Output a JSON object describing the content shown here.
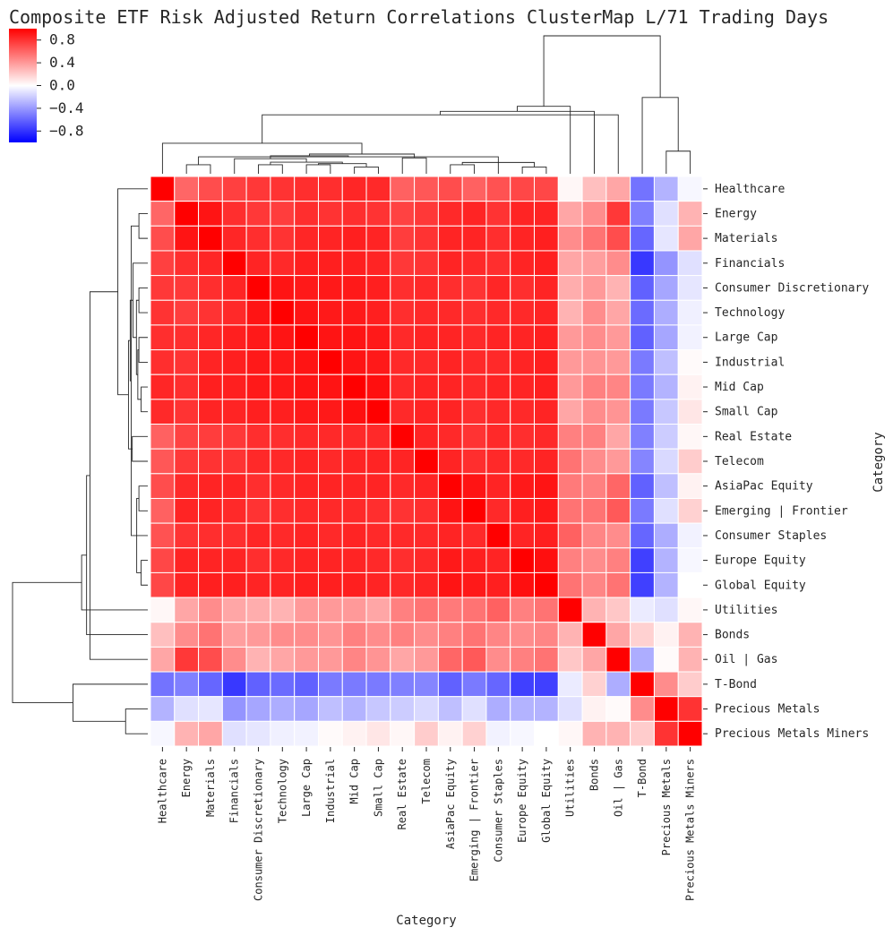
{
  "chart_data": {
    "type": "heatmap",
    "title": "Composite ETF Risk Adjusted Return Correlations ClusterMap L/71 Trading Days",
    "xlabel": "Category",
    "ylabel": "Category",
    "categories": [
      "Healthcare",
      "Energy",
      "Materials",
      "Financials",
      "Consumer Discretionary",
      "Technology",
      "Large Cap",
      "Industrial",
      "Mid Cap",
      "Small Cap",
      "Real Estate",
      "Telecom",
      "AsiaPac Equity",
      "Emerging | Frontier",
      "Consumer Staples",
      "Europe Equity",
      "Global Equity",
      "Utilities",
      "Bonds",
      "Oil | Gas",
      "T-Bond",
      "Precious Metals",
      "Precious Metals Miners"
    ],
    "colorbar": {
      "ticks": [
        "0.8",
        "0.4",
        "0.0",
        "−0.4",
        "−0.8"
      ],
      "tick_values": [
        0.8,
        0.4,
        0.0,
        -0.4,
        -0.8
      ],
      "vmin": -1,
      "vmax": 1,
      "colormap": "bwr"
    },
    "values": [
      [
        1.0,
        0.6,
        0.7,
        0.75,
        0.78,
        0.8,
        0.82,
        0.82,
        0.85,
        0.84,
        0.62,
        0.66,
        0.7,
        0.62,
        0.68,
        0.72,
        0.72,
        0.03,
        0.25,
        0.35,
        -0.55,
        -0.3,
        -0.03
      ],
      [
        0.6,
        1.0,
        0.92,
        0.82,
        0.78,
        0.76,
        0.82,
        0.8,
        0.82,
        0.8,
        0.74,
        0.78,
        0.84,
        0.86,
        0.8,
        0.86,
        0.86,
        0.35,
        0.45,
        0.78,
        -0.5,
        -0.12,
        0.3
      ],
      [
        0.7,
        0.92,
        1.0,
        0.85,
        0.82,
        0.8,
        0.85,
        0.86,
        0.88,
        0.86,
        0.76,
        0.8,
        0.86,
        0.86,
        0.82,
        0.86,
        0.88,
        0.45,
        0.55,
        0.7,
        -0.6,
        -0.1,
        0.35
      ],
      [
        0.75,
        0.82,
        0.85,
        1.0,
        0.86,
        0.84,
        0.88,
        0.88,
        0.88,
        0.86,
        0.78,
        0.8,
        0.86,
        0.84,
        0.82,
        0.86,
        0.88,
        0.35,
        0.38,
        0.45,
        -0.78,
        -0.42,
        -0.12
      ],
      [
        0.78,
        0.78,
        0.82,
        0.86,
        1.0,
        0.92,
        0.9,
        0.9,
        0.9,
        0.88,
        0.82,
        0.84,
        0.82,
        0.8,
        0.85,
        0.82,
        0.86,
        0.32,
        0.4,
        0.3,
        -0.62,
        -0.35,
        -0.1
      ],
      [
        0.8,
        0.76,
        0.8,
        0.84,
        0.92,
        1.0,
        0.92,
        0.9,
        0.9,
        0.88,
        0.82,
        0.84,
        0.84,
        0.82,
        0.84,
        0.84,
        0.86,
        0.3,
        0.45,
        0.35,
        -0.58,
        -0.32,
        -0.06
      ],
      [
        0.82,
        0.82,
        0.85,
        0.88,
        0.9,
        0.92,
        1.0,
        0.92,
        0.92,
        0.9,
        0.84,
        0.86,
        0.86,
        0.84,
        0.86,
        0.86,
        0.88,
        0.4,
        0.45,
        0.4,
        -0.62,
        -0.35,
        -0.05
      ],
      [
        0.82,
        0.8,
        0.86,
        0.88,
        0.9,
        0.9,
        0.92,
        1.0,
        0.92,
        0.9,
        0.84,
        0.84,
        0.86,
        0.84,
        0.84,
        0.86,
        0.88,
        0.4,
        0.42,
        0.4,
        -0.52,
        -0.25,
        0.02
      ],
      [
        0.85,
        0.82,
        0.88,
        0.88,
        0.9,
        0.9,
        0.92,
        0.92,
        1.0,
        0.94,
        0.84,
        0.86,
        0.86,
        0.84,
        0.86,
        0.86,
        0.88,
        0.4,
        0.5,
        0.48,
        -0.52,
        -0.3,
        0.05
      ],
      [
        0.84,
        0.8,
        0.86,
        0.86,
        0.88,
        0.88,
        0.9,
        0.9,
        0.94,
        1.0,
        0.84,
        0.86,
        0.86,
        0.82,
        0.84,
        0.84,
        0.86,
        0.35,
        0.45,
        0.42,
        -0.52,
        -0.22,
        0.1
      ],
      [
        0.62,
        0.74,
        0.76,
        0.78,
        0.82,
        0.82,
        0.84,
        0.84,
        0.84,
        0.84,
        1.0,
        0.86,
        0.84,
        0.8,
        0.84,
        0.82,
        0.84,
        0.5,
        0.5,
        0.35,
        -0.5,
        -0.2,
        0.03
      ],
      [
        0.66,
        0.78,
        0.8,
        0.8,
        0.84,
        0.84,
        0.86,
        0.84,
        0.86,
        0.86,
        0.86,
        1.0,
        0.86,
        0.82,
        0.84,
        0.84,
        0.86,
        0.55,
        0.45,
        0.4,
        -0.48,
        -0.15,
        0.2
      ],
      [
        0.7,
        0.84,
        0.86,
        0.86,
        0.82,
        0.84,
        0.86,
        0.86,
        0.86,
        0.86,
        0.84,
        0.86,
        1.0,
        0.92,
        0.86,
        0.9,
        0.92,
        0.52,
        0.5,
        0.6,
        -0.62,
        -0.25,
        0.05
      ],
      [
        0.62,
        0.86,
        0.86,
        0.84,
        0.8,
        0.82,
        0.84,
        0.84,
        0.84,
        0.82,
        0.8,
        0.82,
        0.92,
        1.0,
        0.84,
        0.88,
        0.9,
        0.55,
        0.55,
        0.65,
        -0.52,
        -0.12,
        0.18
      ],
      [
        0.68,
        0.8,
        0.82,
        0.82,
        0.85,
        0.84,
        0.86,
        0.84,
        0.86,
        0.84,
        0.84,
        0.84,
        0.86,
        0.84,
        1.0,
        0.86,
        0.88,
        0.62,
        0.48,
        0.45,
        -0.6,
        -0.32,
        -0.05
      ],
      [
        0.72,
        0.86,
        0.86,
        0.86,
        0.82,
        0.84,
        0.86,
        0.86,
        0.86,
        0.84,
        0.82,
        0.84,
        0.9,
        0.88,
        0.86,
        1.0,
        0.94,
        0.5,
        0.45,
        0.5,
        -0.75,
        -0.3,
        -0.03
      ],
      [
        0.72,
        0.86,
        0.88,
        0.88,
        0.86,
        0.86,
        0.88,
        0.88,
        0.88,
        0.86,
        0.84,
        0.86,
        0.92,
        0.9,
        0.88,
        0.94,
        1.0,
        0.55,
        0.48,
        0.55,
        -0.75,
        -0.3,
        0.0
      ],
      [
        0.03,
        0.35,
        0.45,
        0.35,
        0.32,
        0.3,
        0.4,
        0.4,
        0.4,
        0.35,
        0.5,
        0.55,
        0.52,
        0.55,
        0.62,
        0.5,
        0.55,
        1.0,
        0.3,
        0.22,
        -0.08,
        -0.12,
        0.03
      ],
      [
        0.25,
        0.45,
        0.55,
        0.38,
        0.4,
        0.45,
        0.45,
        0.42,
        0.5,
        0.45,
        0.5,
        0.45,
        0.5,
        0.55,
        0.48,
        0.45,
        0.48,
        0.3,
        1.0,
        0.35,
        0.18,
        0.05,
        0.3
      ],
      [
        0.35,
        0.78,
        0.7,
        0.45,
        0.3,
        0.35,
        0.4,
        0.4,
        0.48,
        0.42,
        0.35,
        0.4,
        0.6,
        0.65,
        0.45,
        0.5,
        0.55,
        0.22,
        0.35,
        1.0,
        -0.32,
        0.02,
        0.3
      ],
      [
        -0.55,
        -0.5,
        -0.6,
        -0.78,
        -0.62,
        -0.58,
        -0.62,
        -0.52,
        -0.52,
        -0.52,
        -0.5,
        -0.48,
        -0.62,
        -0.52,
        -0.6,
        -0.75,
        -0.75,
        -0.08,
        0.18,
        -0.32,
        1.0,
        0.45,
        0.2
      ],
      [
        -0.3,
        -0.12,
        -0.1,
        -0.42,
        -0.35,
        -0.32,
        -0.35,
        -0.25,
        -0.3,
        -0.22,
        -0.2,
        -0.15,
        -0.25,
        -0.12,
        -0.32,
        -0.3,
        -0.3,
        -0.12,
        0.05,
        0.02,
        0.45,
        1.0,
        0.8
      ],
      [
        -0.03,
        0.3,
        0.35,
        -0.12,
        -0.1,
        -0.06,
        -0.05,
        0.02,
        0.05,
        0.1,
        0.03,
        0.2,
        0.05,
        0.18,
        -0.05,
        -0.03,
        0.0,
        0.03,
        0.3,
        0.3,
        0.2,
        0.8,
        1.0
      ]
    ],
    "col_dendrogram": [
      [
        0.66,
        9.5,
        0.16,
        0.5
      ],
      [
        0.3,
        0.5,
        0.08,
        10.5
      ],
      [
        0.62,
        11.5,
        0.19,
        14.5
      ],
      [
        0.51,
        12.5,
        0.4,
        16.0
      ],
      [
        0.42,
        13.5,
        0.23,
        15.5
      ],
      [
        0.36,
        14.0,
        0.2,
        16.0
      ],
      [
        0.3,
        16.5,
        0.19,
        18.5
      ],
      [
        0.24,
        17.5,
        0.19,
        19.0
      ],
      [
        0.2,
        18.5,
        0.12,
        20.5
      ],
      [
        0.14,
        19.5,
        0.08,
        21.5
      ],
      [
        0.08,
        20.5,
        0.0,
        22.5
      ],
      [
        0.06,
        21.5,
        0.0,
        23.0
      ],
      [
        0.05,
        22.5,
        0.0,
        23.5
      ],
      [
        0.04,
        23.5,
        0.0,
        25.5
      ],
      [
        0.03,
        24.5,
        0.0,
        26.5
      ],
      [
        0.02,
        25.5,
        0.0,
        27.5
      ],
      [
        0.01,
        26.5,
        0.0,
        28.5
      ]
    ],
    "row_dendrogram": [
      [
        0.66,
        9.5,
        0.16,
        0.5
      ],
      [
        0.3,
        0.5,
        0.08,
        10.5
      ],
      [
        0.62,
        11.5,
        0.19,
        14.5
      ],
      [
        0.51,
        12.5,
        0.4,
        16.0
      ],
      [
        0.42,
        13.5,
        0.23,
        15.5
      ],
      [
        0.36,
        14.0,
        0.2,
        16.0
      ],
      [
        0.3,
        16.5,
        0.19,
        18.5
      ],
      [
        0.24,
        17.5,
        0.19,
        19.0
      ],
      [
        0.2,
        18.5,
        0.12,
        20.5
      ],
      [
        0.14,
        19.5,
        0.08,
        21.5
      ],
      [
        0.08,
        20.5,
        0.0,
        22.5
      ],
      [
        0.06,
        21.5,
        0.0,
        23.0
      ],
      [
        0.05,
        22.5,
        0.0,
        23.5
      ],
      [
        0.04,
        23.5,
        0.0,
        25.5
      ],
      [
        0.03,
        24.5,
        0.0,
        26.5
      ],
      [
        0.02,
        25.5,
        0.0,
        27.5
      ],
      [
        0.01,
        26.5,
        0.0,
        28.5
      ]
    ]
  }
}
